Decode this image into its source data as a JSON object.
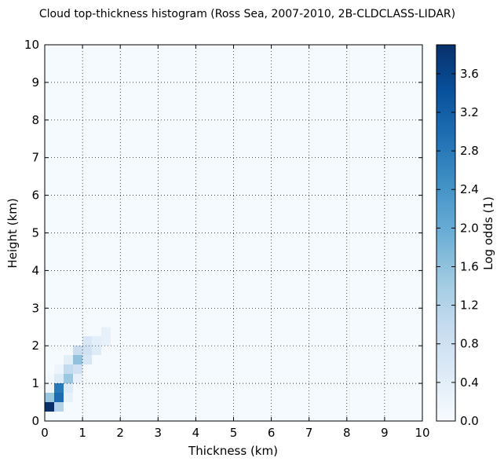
{
  "chart_data": {
    "type": "heatmap",
    "title": "Cloud top-thickness histogram (Ross Sea, 2007-2010, 2B-CLDCLASS-LIDAR)",
    "xlabel": "Thickness (km)",
    "ylabel": "Height (km)",
    "xlim": [
      0,
      10
    ],
    "ylim": [
      0,
      10
    ],
    "x_ticks": [
      "0",
      "1",
      "2",
      "3",
      "4",
      "5",
      "6",
      "7",
      "8",
      "9",
      "10"
    ],
    "y_ticks": [
      "0",
      "1",
      "2",
      "3",
      "4",
      "5",
      "6",
      "7",
      "8",
      "9",
      "10"
    ],
    "bin_size_km": 0.25,
    "grid": true,
    "colormap": "Blues",
    "colorbar": {
      "label": "Log odds (1)",
      "min": 0.0,
      "max": 3.9,
      "ticks": [
        "0.0",
        "0.4",
        "0.8",
        "1.2",
        "1.6",
        "2.0",
        "2.4",
        "2.8",
        "3.2",
        "3.6"
      ]
    },
    "cells_note_units": "each cell: [thickness_km_lower_edge, height_km_lower_edge, log_odds]",
    "cells": [
      [
        0.0,
        0.25,
        3.9
      ],
      [
        0.0,
        0.5,
        1.5
      ],
      [
        0.0,
        0.75,
        0.15
      ],
      [
        0.0,
        1.0,
        0.08
      ],
      [
        0.25,
        0.25,
        1.2
      ],
      [
        0.25,
        0.5,
        3.0
      ],
      [
        0.25,
        0.75,
        2.8
      ],
      [
        0.25,
        1.0,
        0.5
      ],
      [
        0.25,
        1.25,
        0.2
      ],
      [
        0.5,
        0.5,
        0.3
      ],
      [
        0.5,
        0.75,
        0.5
      ],
      [
        0.5,
        1.0,
        1.5
      ],
      [
        0.5,
        1.25,
        1.0
      ],
      [
        0.5,
        1.5,
        0.4
      ],
      [
        0.75,
        1.0,
        0.3
      ],
      [
        0.75,
        1.25,
        0.8
      ],
      [
        0.75,
        1.5,
        1.6
      ],
      [
        0.75,
        1.75,
        0.9
      ],
      [
        1.0,
        1.5,
        0.6
      ],
      [
        1.0,
        1.75,
        0.8
      ],
      [
        1.0,
        2.0,
        0.6
      ],
      [
        1.25,
        1.75,
        0.5
      ],
      [
        1.25,
        2.0,
        0.4
      ],
      [
        1.5,
        2.0,
        0.3
      ],
      [
        1.5,
        2.25,
        0.3
      ]
    ]
  }
}
